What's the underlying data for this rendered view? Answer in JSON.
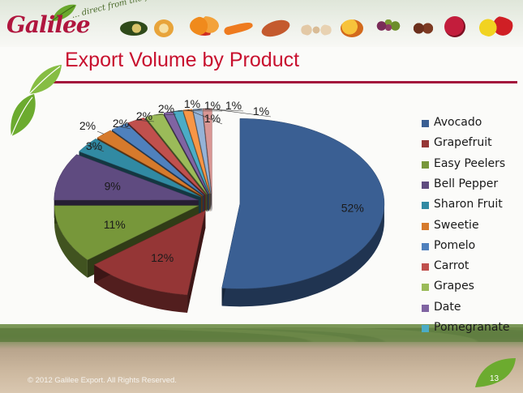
{
  "header": {
    "logo_text": "Galilee",
    "logo_tagline": "... direct from the field!"
  },
  "title": "Export Volume by Product",
  "footer": {
    "copyright": "© 2012 Galilee Export. All Rights Reserved.",
    "page_number": "13"
  },
  "colors": {
    "title": "#c8102e",
    "rule": "#a3123c"
  },
  "chart_data": {
    "type": "pie",
    "style": "3d-exploded",
    "title": "",
    "legend_position": "right",
    "slices": [
      {
        "name": "Avocado",
        "value": 52,
        "label": "52%",
        "color": "#3a5f93"
      },
      {
        "name": "Grapefruit",
        "value": 12,
        "label": "12%",
        "color": "#953636"
      },
      {
        "name": "Easy Peelers",
        "value": 11,
        "label": "11%",
        "color": "#77973a"
      },
      {
        "name": "Bell Pepper",
        "value": 9,
        "label": "9%",
        "color": "#5f4b80"
      },
      {
        "name": "Sharon Fruit",
        "value": 3,
        "label": "3%",
        "color": "#318aa3"
      },
      {
        "name": "Sweetie",
        "value": 2,
        "label": "2%",
        "color": "#d67a2c"
      },
      {
        "name": "Pomelo",
        "value": 2,
        "label": "2%",
        "color": "#4f81bd"
      },
      {
        "name": "Carrot",
        "value": 2,
        "label": "2%",
        "color": "#c0504d"
      },
      {
        "name": "Grapes",
        "value": 2,
        "label": "2%",
        "color": "#9bbb59"
      },
      {
        "name": "Date",
        "value": 1,
        "label": "1%",
        "color": "#8064a2"
      },
      {
        "name": "Pomegranate",
        "value": 1,
        "label": "1%",
        "color": "#4bacc6"
      },
      {
        "name": "",
        "value": 1,
        "label": "1%",
        "color": "#f79646"
      },
      {
        "name": "",
        "value": 1,
        "label": "1%",
        "color": "#95b3d7"
      },
      {
        "name": "",
        "value": 1,
        "label": "1%",
        "color": "#d99694"
      }
    ]
  }
}
